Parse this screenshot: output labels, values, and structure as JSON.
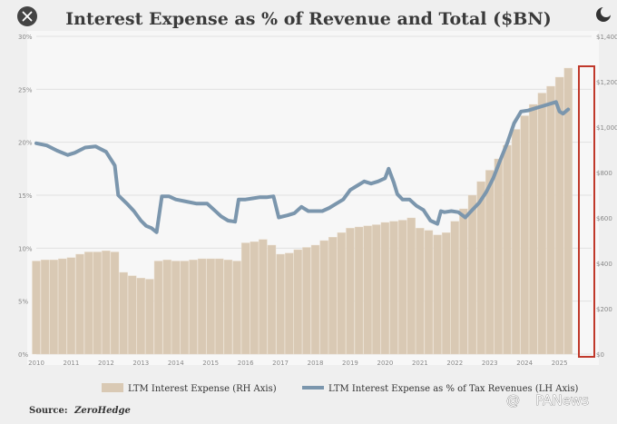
{
  "close_icon": "close-icon",
  "corner_icon": "moon-icon",
  "watermark": {
    "at": "@",
    "text": "PANews"
  },
  "source": {
    "label": "Source:",
    "name": "ZeroHedge"
  },
  "chart_data": {
    "type": "bar+line",
    "title": "Interest Expense as % of  Revenue and Total ($BN)",
    "x_ticks": [
      "2010",
      "2011",
      "2012",
      "2013",
      "2014",
      "2015",
      "2016",
      "2017",
      "2018",
      "2019",
      "2020",
      "2021",
      "2022",
      "2023",
      "2024",
      "2025"
    ],
    "left_axis": {
      "ticks": [
        "0%",
        "5%",
        "10%",
        "15%",
        "20%",
        "25%",
        "30%"
      ],
      "ylim": [
        0,
        30
      ]
    },
    "right_axis": {
      "ticks": [
        "$0",
        "$200",
        "$400",
        "$600",
        "$800",
        "$1,000",
        "$1,200",
        "$1,400"
      ],
      "ylim": [
        0,
        1400
      ]
    },
    "highlight_box": true,
    "legend": [
      {
        "name": "LTM Interest Expense (RH Axis)",
        "color": "#d9c9b4",
        "kind": "bar"
      },
      {
        "name": "LTM Interest Expense as % of Tax Revenues (LH Axis)",
        "color": "#7b96ad",
        "kind": "line"
      }
    ],
    "bars": {
      "x": [
        2010.0,
        2010.25,
        2010.5,
        2010.75,
        2011.0,
        2011.25,
        2011.5,
        2011.75,
        2012.0,
        2012.25,
        2012.5,
        2012.75,
        2013.0,
        2013.25,
        2013.5,
        2013.75,
        2014.0,
        2014.25,
        2014.5,
        2014.75,
        2015.0,
        2015.25,
        2015.5,
        2015.75,
        2016.0,
        2016.25,
        2016.5,
        2016.75,
        2017.0,
        2017.25,
        2017.5,
        2017.75,
        2018.0,
        2018.25,
        2018.5,
        2018.75,
        2019.0,
        2019.25,
        2019.5,
        2019.75,
        2020.0,
        2020.25,
        2020.5,
        2020.75,
        2021.0,
        2021.25,
        2021.5,
        2021.75,
        2022.0,
        2022.25,
        2022.5,
        2022.75,
        2023.0,
        2023.25,
        2023.5,
        2023.75,
        2024.0,
        2024.25,
        2024.5,
        2024.75,
        2025.0,
        2025.25
      ],
      "values": [
        410,
        415,
        415,
        420,
        425,
        440,
        450,
        450,
        455,
        450,
        360,
        345,
        335,
        330,
        410,
        415,
        410,
        410,
        415,
        420,
        420,
        420,
        415,
        410,
        490,
        495,
        505,
        480,
        440,
        445,
        460,
        470,
        480,
        500,
        515,
        535,
        555,
        560,
        565,
        570,
        580,
        585,
        590,
        600,
        555,
        545,
        525,
        535,
        585,
        640,
        700,
        760,
        810,
        860,
        920,
        990,
        1050,
        1100,
        1150,
        1180,
        1220,
        1260
      ]
    },
    "series": [
      {
        "name": "LTM Interest Expense as % of Tax Revenues (LH Axis)",
        "x": [
          2010.0,
          2010.3,
          2010.6,
          2010.9,
          2011.1,
          2011.4,
          2011.7,
          2012.0,
          2012.25,
          2012.35,
          2012.6,
          2012.8,
          2013.0,
          2013.15,
          2013.3,
          2013.45,
          2013.6,
          2013.8,
          2014.0,
          2014.3,
          2014.6,
          2014.9,
          2015.1,
          2015.3,
          2015.5,
          2015.7,
          2015.8,
          2016.0,
          2016.2,
          2016.4,
          2016.6,
          2016.8,
          2016.95,
          2017.2,
          2017.4,
          2017.6,
          2017.8,
          2018.0,
          2018.2,
          2018.4,
          2018.6,
          2018.8,
          2019.0,
          2019.2,
          2019.4,
          2019.6,
          2019.8,
          2020.0,
          2020.1,
          2020.25,
          2020.35,
          2020.5,
          2020.7,
          2020.9,
          2021.1,
          2021.3,
          2021.5,
          2021.6,
          2021.7,
          2021.9,
          2022.1,
          2022.3,
          2022.5,
          2022.7,
          2022.9,
          2023.1,
          2023.3,
          2023.5,
          2023.7,
          2023.9,
          2024.1,
          2024.3,
          2024.5,
          2024.7,
          2024.9,
          2025.0,
          2025.1,
          2025.25
        ],
        "values": [
          19.9,
          19.7,
          19.2,
          18.8,
          19.0,
          19.5,
          19.6,
          19.1,
          17.8,
          15.0,
          14.2,
          13.5,
          12.6,
          12.1,
          11.9,
          11.5,
          14.9,
          14.9,
          14.6,
          14.4,
          14.2,
          14.2,
          13.6,
          13.0,
          12.6,
          12.5,
          14.6,
          14.6,
          14.7,
          14.8,
          14.8,
          14.9,
          12.9,
          13.1,
          13.3,
          13.9,
          13.5,
          13.5,
          13.5,
          13.8,
          14.2,
          14.6,
          15.5,
          15.9,
          16.3,
          16.1,
          16.3,
          16.6,
          17.5,
          16.2,
          15.1,
          14.6,
          14.6,
          14.0,
          13.6,
          12.6,
          12.3,
          13.5,
          13.4,
          13.5,
          13.4,
          12.9,
          13.6,
          14.3,
          15.3,
          16.6,
          18.3,
          19.9,
          21.8,
          22.9,
          23.0,
          23.2,
          23.4,
          23.6,
          23.8,
          22.9,
          22.7,
          23.1
        ]
      }
    ]
  }
}
